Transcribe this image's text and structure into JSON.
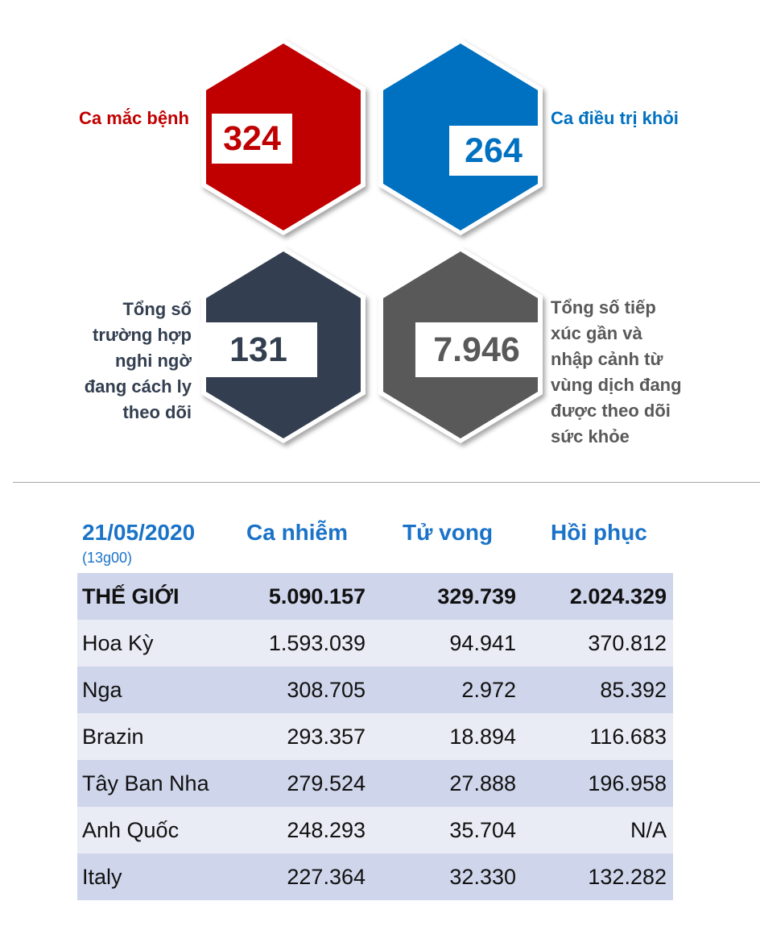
{
  "stats": {
    "cases": {
      "label": "Ca mắc bệnh",
      "value": "324",
      "color": "#c00000"
    },
    "recovered": {
      "label": "Ca điều trị khỏi",
      "value": "264",
      "color": "#0070c0"
    },
    "quarantine": {
      "label_lines": [
        "Tổng số",
        "trường hợp",
        "nghi ngờ",
        "đang cách ly",
        "theo dõi"
      ],
      "value": "131",
      "color": "#333f50"
    },
    "monitored": {
      "label_lines": [
        "Tổng số tiếp",
        "xúc gần và",
        "nhập cảnh từ",
        "vùng dịch đang",
        "được theo dõi",
        "sức khỏe"
      ],
      "value": "7.946",
      "color": "#595959"
    }
  },
  "table": {
    "date": "21/05/2020",
    "time": "(13g00)",
    "headers": [
      "Ca nhiễm",
      "Tử vong",
      "Hồi phục"
    ],
    "rows": [
      [
        "THẾ GIỚI",
        "5.090.157",
        "329.739",
        "2.024.329"
      ],
      [
        "Hoa Kỳ",
        "1.593.039",
        "94.941",
        "370.812"
      ],
      [
        "Nga",
        "308.705",
        "2.972",
        "85.392"
      ],
      [
        "Brazin",
        "293.357",
        "18.894",
        "116.683"
      ],
      [
        "Tây Ban Nha",
        "279.524",
        "27.888",
        "196.958"
      ],
      [
        "Anh Quốc",
        "248.293",
        "35.704",
        "N/A"
      ],
      [
        "Italy",
        "227.364",
        "32.330",
        "132.282"
      ]
    ]
  }
}
